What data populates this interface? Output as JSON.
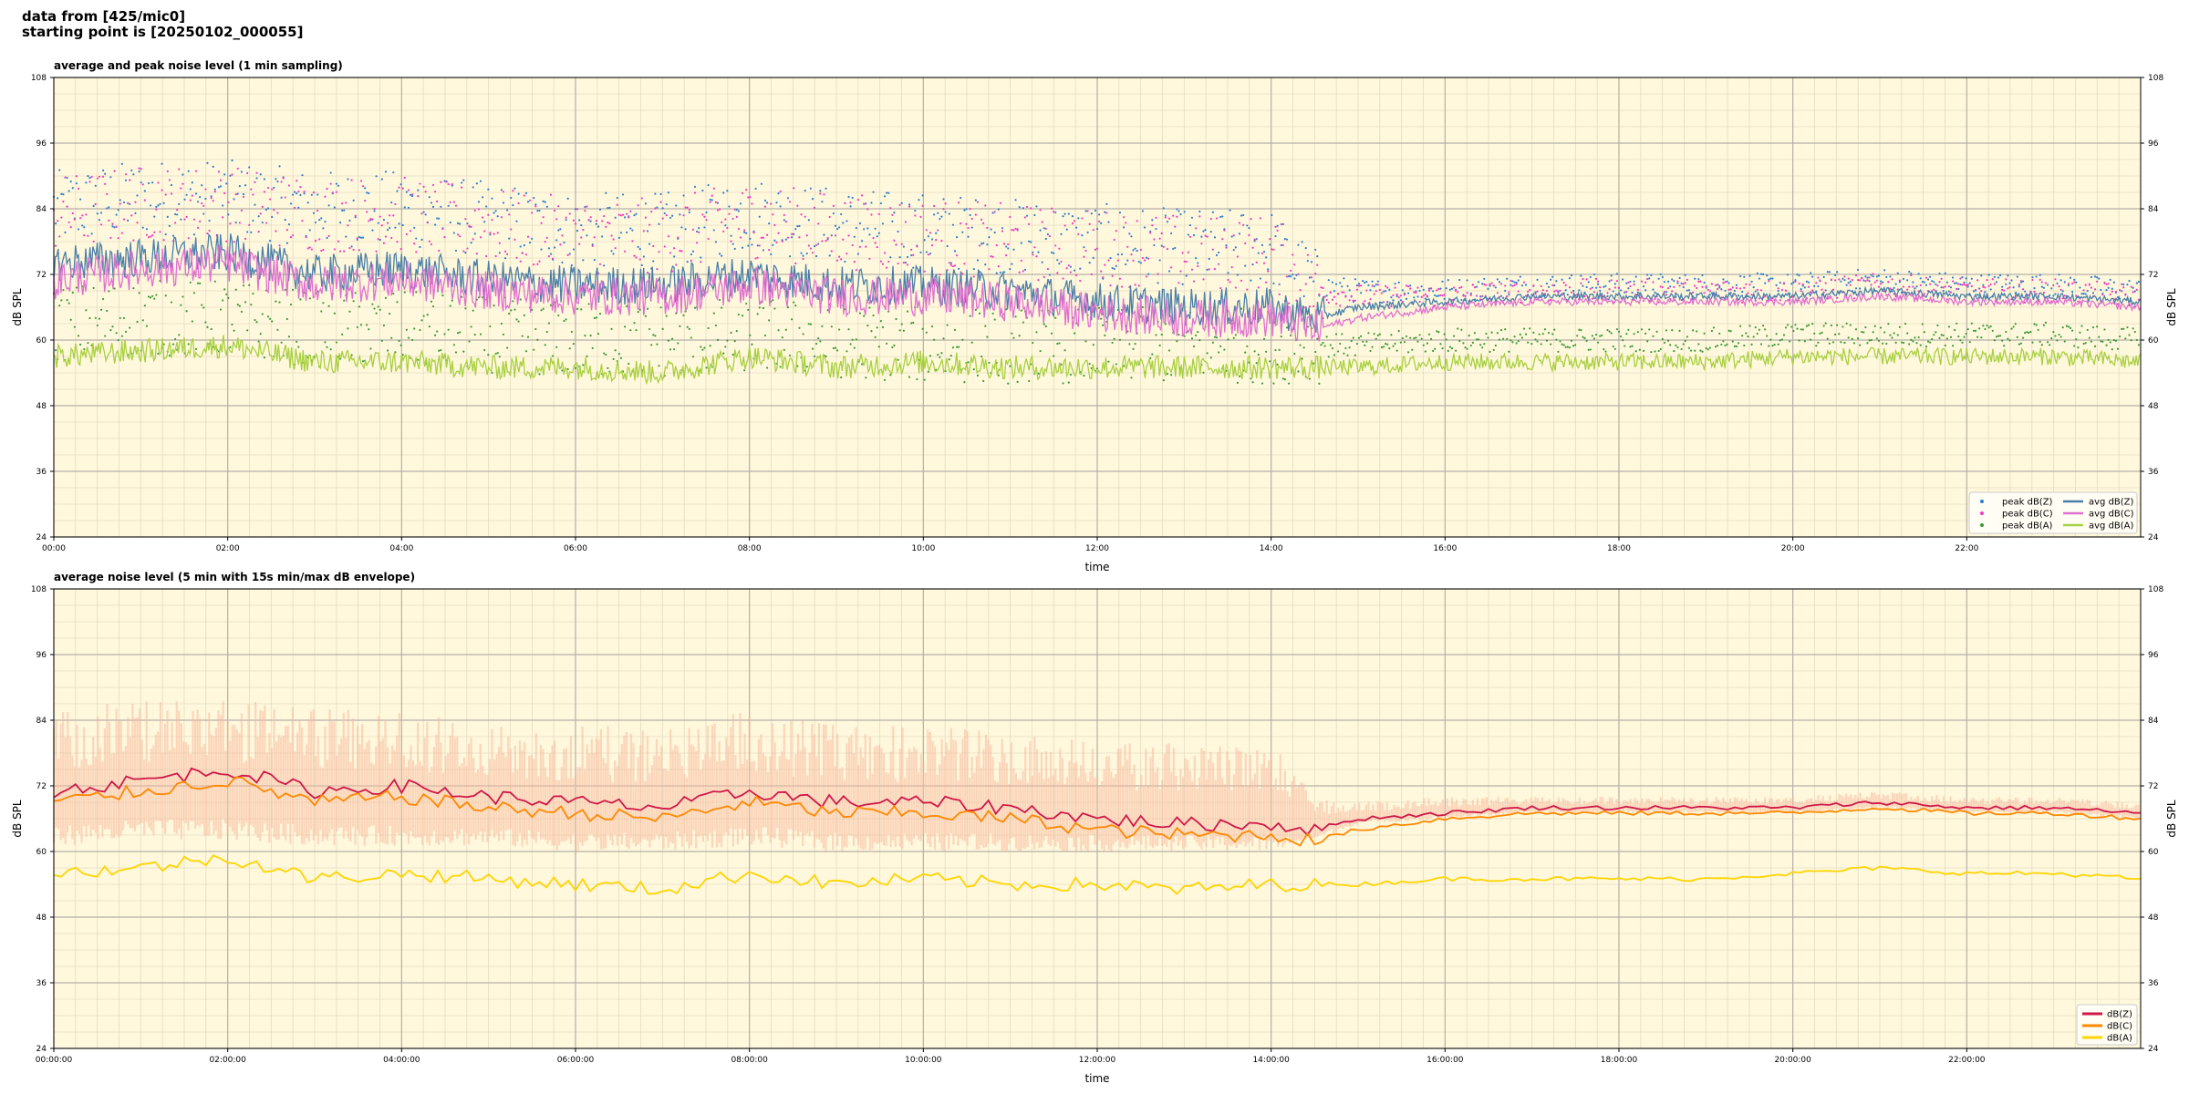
{
  "header": {
    "line1": "data from [425/mic0]",
    "line2": "starting point is [20250102_000055]"
  },
  "chart_data": [
    {
      "type": "line",
      "title": "average and peak noise level (1 min sampling)",
      "xlabel": "time",
      "ylabel": "dB SPL",
      "xlim": [
        0,
        24
      ],
      "ylim": [
        24,
        108
      ],
      "yticks": [
        24,
        36,
        48,
        60,
        72,
        84,
        96,
        108
      ],
      "xticks": [
        "00:00",
        "02:00",
        "04:00",
        "06:00",
        "08:00",
        "10:00",
        "12:00",
        "14:00",
        "16:00",
        "18:00",
        "20:00",
        "22:00"
      ],
      "grid": true,
      "legend_position": "bottom-right",
      "colors": {
        "background": "#fff8dc",
        "peakZ": "#2c7fd0",
        "peakC": "#f03ac0",
        "peakA": "#3a9a3a",
        "avgZ": "#4a7fa8",
        "avgC": "#e070d0",
        "avgA": "#a8d040"
      },
      "series": [
        {
          "name": "peak dB(Z)",
          "kind": "scatter",
          "color": "#2c7fd0",
          "x": [
            0,
            1,
            2,
            3,
            4,
            5,
            6,
            7,
            8,
            9,
            10,
            11,
            12,
            13,
            14,
            14.5,
            15,
            16,
            17,
            18,
            19,
            20,
            21,
            22,
            23,
            24
          ],
          "y": [
            84,
            86,
            86,
            84,
            84,
            82,
            80,
            80,
            83,
            81,
            80,
            79,
            78,
            77,
            77,
            70,
            69,
            69,
            70,
            70,
            70,
            70,
            71,
            70,
            70,
            69
          ]
        },
        {
          "name": "peak dB(C)",
          "kind": "scatter",
          "color": "#f03ac0",
          "x": [
            0,
            1,
            2,
            3,
            4,
            5,
            6,
            7,
            8,
            9,
            10,
            11,
            12,
            13,
            14,
            14.5,
            15,
            16,
            17,
            18,
            19,
            20,
            21,
            22,
            23,
            24
          ],
          "y": [
            83,
            85,
            85,
            83,
            83,
            81,
            79,
            79,
            82,
            80,
            79,
            78,
            77,
            76,
            76,
            69,
            68,
            68,
            69,
            69,
            69,
            69,
            70,
            69,
            69,
            68
          ]
        },
        {
          "name": "peak dB(A)",
          "kind": "scatter",
          "color": "#3a9a3a",
          "x": [
            0,
            1,
            2,
            3,
            4,
            5,
            6,
            7,
            8,
            9,
            10,
            11,
            12,
            13,
            14,
            14.5,
            15,
            16,
            17,
            18,
            19,
            20,
            21,
            22,
            23,
            24
          ],
          "y": [
            63,
            64,
            64,
            62,
            62,
            61,
            60,
            60,
            61,
            60,
            59,
            59,
            59,
            59,
            59,
            59,
            59,
            60,
            60,
            60,
            60,
            61,
            61,
            61,
            61,
            60
          ]
        },
        {
          "name": "avg dB(Z)",
          "kind": "line",
          "color": "#4a7fa8",
          "x": [
            0,
            1,
            2,
            3,
            4,
            5,
            6,
            7,
            8,
            9,
            10,
            11,
            12,
            13,
            14,
            14.5,
            15,
            16,
            17,
            18,
            19,
            20,
            21,
            22,
            23,
            24
          ],
          "y": [
            74,
            75,
            76,
            72,
            73,
            71,
            70,
            70,
            72,
            70,
            70,
            69,
            67,
            66,
            66,
            64,
            66,
            67,
            68,
            68,
            68,
            68,
            69,
            68,
            68,
            67
          ]
        },
        {
          "name": "avg dB(C)",
          "kind": "line",
          "color": "#e070d0",
          "x": [
            0,
            1,
            2,
            3,
            4,
            5,
            6,
            7,
            8,
            9,
            10,
            11,
            12,
            13,
            14,
            14.5,
            15,
            16,
            17,
            18,
            19,
            20,
            21,
            22,
            23,
            24
          ],
          "y": [
            71,
            73,
            74,
            70,
            71,
            69,
            68,
            68,
            70,
            68,
            68,
            67,
            65,
            64,
            64,
            62,
            64,
            66,
            67,
            67,
            67,
            67,
            68,
            67,
            67,
            66
          ]
        },
        {
          "name": "avg dB(A)",
          "kind": "line",
          "color": "#a8d040",
          "x": [
            0,
            1,
            2,
            3,
            4,
            5,
            6,
            7,
            8,
            9,
            10,
            11,
            12,
            13,
            14,
            14.5,
            15,
            16,
            17,
            18,
            19,
            20,
            21,
            22,
            23,
            24
          ],
          "y": [
            57,
            58,
            59,
            56,
            56,
            55,
            55,
            54,
            57,
            55,
            56,
            55,
            55,
            55,
            55,
            55,
            55,
            56,
            56,
            56,
            56,
            57,
            57,
            57,
            57,
            56
          ]
        }
      ]
    },
    {
      "type": "line",
      "title": "average noise level (5 min with 15s min/max dB envelope)",
      "xlabel": "time",
      "ylabel": "dB SPL",
      "xlim": [
        0,
        24
      ],
      "ylim": [
        24,
        108
      ],
      "yticks": [
        24,
        36,
        48,
        60,
        72,
        84,
        96,
        108
      ],
      "xticks": [
        "00:00:00",
        "02:00:00",
        "04:00:00",
        "06:00:00",
        "08:00:00",
        "10:00:00",
        "12:00:00",
        "14:00:00",
        "16:00:00",
        "18:00:00",
        "20:00:00",
        "22:00:00"
      ],
      "grid": true,
      "legend_position": "bottom-right",
      "colors": {
        "background": "#fff8dc",
        "envelope": "#f7b9a0",
        "dBZ": "#d01848",
        "dBC": "#ff8800",
        "dBA": "#ffd400"
      },
      "envelope": {
        "x": [
          0,
          1,
          2,
          3,
          4,
          5,
          6,
          7,
          8,
          9,
          10,
          11,
          12,
          13,
          14,
          14.5,
          15,
          16,
          17,
          18,
          19,
          20,
          21,
          22,
          23,
          24
        ],
        "min": [
          61,
          62,
          62,
          61,
          61,
          61,
          60,
          60,
          61,
          60,
          60,
          60,
          60,
          60,
          60,
          62,
          65,
          66,
          67,
          67,
          67,
          67,
          68,
          67,
          67,
          66
        ],
        "max": [
          86,
          88,
          88,
          86,
          86,
          84,
          83,
          83,
          86,
          83,
          83,
          82,
          80,
          80,
          80,
          70,
          69,
          70,
          70,
          70,
          70,
          70,
          71,
          70,
          70,
          69
        ]
      },
      "series": [
        {
          "name": "dB(Z)",
          "kind": "line",
          "color": "#d01848",
          "x": [
            0,
            1,
            2,
            3,
            4,
            5,
            6,
            7,
            8,
            9,
            10,
            11,
            12,
            13,
            14,
            14.5,
            15,
            16,
            17,
            18,
            19,
            20,
            21,
            22,
            23,
            24
          ],
          "y": [
            71,
            73,
            75,
            71,
            72,
            70,
            69,
            68,
            71,
            69,
            69,
            68,
            66,
            65,
            65,
            64,
            66,
            67,
            68,
            68,
            68,
            68,
            69,
            68,
            68,
            67
          ]
        },
        {
          "name": "dB(C)",
          "kind": "line",
          "color": "#ff8800",
          "x": [
            0,
            1,
            2,
            3,
            4,
            5,
            6,
            7,
            8,
            9,
            10,
            11,
            12,
            13,
            14,
            14.5,
            15,
            16,
            17,
            18,
            19,
            20,
            21,
            22,
            23,
            24
          ],
          "y": [
            69,
            71,
            73,
            69,
            70,
            68,
            67,
            66,
            69,
            67,
            67,
            66,
            64,
            63,
            63,
            62,
            64,
            66,
            67,
            67,
            67,
            67,
            68,
            67,
            67,
            66
          ]
        },
        {
          "name": "dB(A)",
          "kind": "line",
          "color": "#ffd400",
          "x": [
            0,
            1,
            2,
            3,
            4,
            5,
            6,
            7,
            8,
            9,
            10,
            11,
            12,
            13,
            14,
            14.5,
            15,
            16,
            17,
            18,
            19,
            20,
            21,
            22,
            23,
            24
          ],
          "y": [
            56,
            57,
            59,
            55,
            56,
            55,
            54,
            53,
            56,
            54,
            55,
            54,
            54,
            53,
            54,
            54,
            54,
            55,
            55,
            55,
            55,
            56,
            57,
            56,
            56,
            55
          ]
        }
      ]
    }
  ]
}
